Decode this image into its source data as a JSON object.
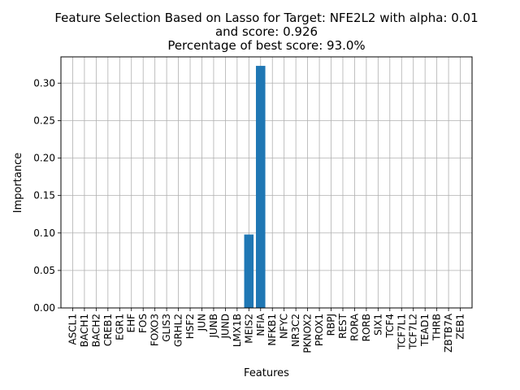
{
  "chart_data": {
    "type": "bar",
    "title_lines": [
      "Feature Selection Based on Lasso for Target: NFE2L2 with alpha: 0.01",
      "and score: 0.926",
      "Percentage of best score: 93.0%"
    ],
    "xlabel": "Features",
    "ylabel": "Importance",
    "ylim": [
      0,
      0.335
    ],
    "yticks": [
      "0.00",
      "0.05",
      "0.10",
      "0.15",
      "0.20",
      "0.25",
      "0.30"
    ],
    "grid": true,
    "bar_color": "#1f77b4",
    "categories": [
      "ASCL1",
      "BACH1",
      "BACH2",
      "CREB1",
      "EGR1",
      "EHF",
      "FOS",
      "FOXO3",
      "GLIS3",
      "GRHL2",
      "HSF2",
      "JUN",
      "JUNB",
      "JUND",
      "LMX1B",
      "MEIS2",
      "NFIA",
      "NFKB1",
      "NFYC",
      "NR3C2",
      "PKNOX2",
      "PROX1",
      "RBPJ",
      "REST",
      "RORA",
      "RORB",
      "SIX1",
      "TCF4",
      "TCF7L1",
      "TCF7L2",
      "TEAD1",
      "THRB",
      "ZBTB7A",
      "ZEB1"
    ],
    "values": [
      0,
      0,
      0,
      0,
      0,
      0,
      0,
      0,
      0,
      0,
      0,
      0,
      0,
      0,
      0,
      0.098,
      0.323,
      0,
      0,
      0,
      0,
      0,
      0,
      0,
      0,
      0,
      0,
      0,
      0,
      0,
      0,
      0,
      0,
      0
    ]
  }
}
